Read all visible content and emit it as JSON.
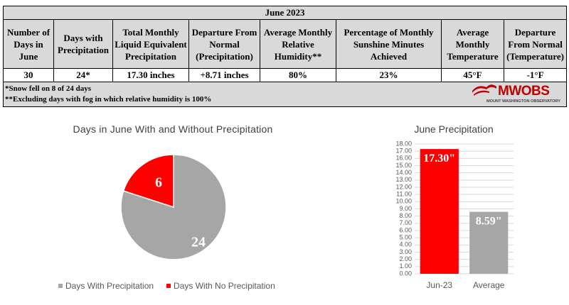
{
  "table": {
    "title": "June 2023",
    "headers": [
      "Number of Days in June",
      "Days with Precipitation",
      "Total Monthly Liquid Equivalent Precipitation",
      "Departure From Normal (Precipitation)",
      "Average Monthly Relative Humidity**",
      "Percentage of Monthly Sunshine Minutes Achieved",
      "Average Monthly Temperature",
      "Departure From Normal (Temperature)"
    ],
    "values": [
      "30",
      "24*",
      "17.30 inches",
      "+8.71 inches",
      "80%",
      "23%",
      "45°F",
      "-1°F"
    ],
    "notes": [
      "*Snow fell on 8 of 24 days",
      "**Excluding days with fog in which relative humidity is 100%"
    ]
  },
  "logo": {
    "text": "MWOBS",
    "subtext": "MOUNT WASHINGTON OBSERVATORY",
    "color": "#c00000"
  },
  "chart_data": [
    {
      "type": "pie",
      "title": "Days in June With and Without Precipitation",
      "labels": [
        "Days With Precipitation",
        "Days With No Precipitation"
      ],
      "values": [
        24,
        6
      ],
      "colors": [
        "#a6a6a6",
        "#ff0000"
      ],
      "legend": "bottom"
    },
    {
      "type": "bar",
      "title": "June Precipitation",
      "categories": [
        "Jun-23",
        "Average"
      ],
      "values": [
        17.3,
        8.59
      ],
      "data_labels": [
        "17.30\"",
        "8.59\""
      ],
      "colors": [
        "#ff0000",
        "#a6a6a6"
      ],
      "ylim": [
        0,
        18
      ],
      "ytick_step": 1,
      "ytick_labels": [
        "0.00",
        "1.00",
        "2.00",
        "3.00",
        "4.00",
        "5.00",
        "6.00",
        "7.00",
        "8.00",
        "9.00",
        "10.00",
        "11.00",
        "12.00",
        "13.00",
        "14.00",
        "15.00",
        "16.00",
        "17.00",
        "18.00"
      ],
      "grid": true,
      "legend": "none"
    }
  ]
}
